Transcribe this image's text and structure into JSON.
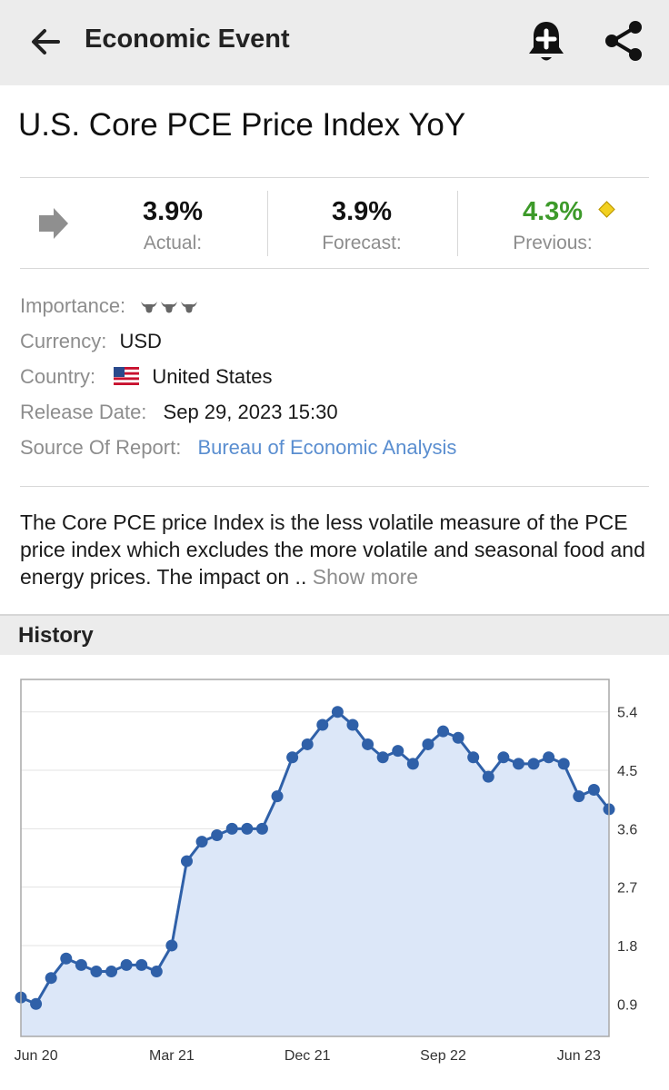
{
  "appbar": {
    "title": "Economic Event",
    "back_icon": "arrow-left-icon",
    "alert_icon": "bell-plus-icon",
    "share_icon": "share-icon"
  },
  "event": {
    "name": "U.S. Core PCE Price Index YoY",
    "trend_icon": "arrow-right-icon",
    "actual": {
      "value": "3.9%",
      "label": "Actual:"
    },
    "forecast": {
      "value": "3.9%",
      "label": "Forecast:"
    },
    "previous": {
      "value": "4.3%",
      "label": "Previous:",
      "color": "#3d9a2a",
      "revised_marker": "diamond-icon"
    }
  },
  "details": {
    "importance_label": "Importance:",
    "importance_level": 3,
    "importance_icon": "bull-icon",
    "currency_label": "Currency:",
    "currency": "USD",
    "country_label": "Country:",
    "country_flag": "us-flag-icon",
    "country": "United States",
    "release_label": "Release Date:",
    "release_date": "Sep 29, 2023 15:30",
    "source_label": "Source Of Report:",
    "source": "Bureau of Economic Analysis",
    "link_color": "#5a8ed0"
  },
  "description": {
    "text": "The Core PCE price Index is the less volatile measure of the PCE price index which excludes the more volatile and seasonal food and energy prices. The impact on ..",
    "show_more": "Show more"
  },
  "history": {
    "title": "History"
  },
  "chart_data": {
    "type": "area",
    "x_tick_labels": [
      "Jun 20",
      "Mar 21",
      "Dec 21",
      "Sep 22",
      "Jun 23"
    ],
    "x_tick_index": [
      1,
      10,
      19,
      28,
      37
    ],
    "y_ticks": [
      "5.4",
      "4.5",
      "3.6",
      "2.7",
      "1.8",
      "0.9"
    ],
    "y_tick_values": [
      5.4,
      4.5,
      3.6,
      2.7,
      1.8,
      0.9
    ],
    "ylim": [
      0.4,
      5.9
    ],
    "y_axis_side": "right",
    "grid": true,
    "line_color": "#2f60a8",
    "fill_color": "#dce7f8",
    "values": [
      1.0,
      0.9,
      1.3,
      1.6,
      1.5,
      1.4,
      1.4,
      1.5,
      1.5,
      1.4,
      1.8,
      3.1,
      3.4,
      3.5,
      3.6,
      3.6,
      3.6,
      4.1,
      4.7,
      4.9,
      5.2,
      5.4,
      5.2,
      4.9,
      4.7,
      4.8,
      4.6,
      4.9,
      5.1,
      5.0,
      4.7,
      4.4,
      4.7,
      4.6,
      4.6,
      4.7,
      4.6,
      4.1,
      4.2,
      3.9
    ]
  }
}
